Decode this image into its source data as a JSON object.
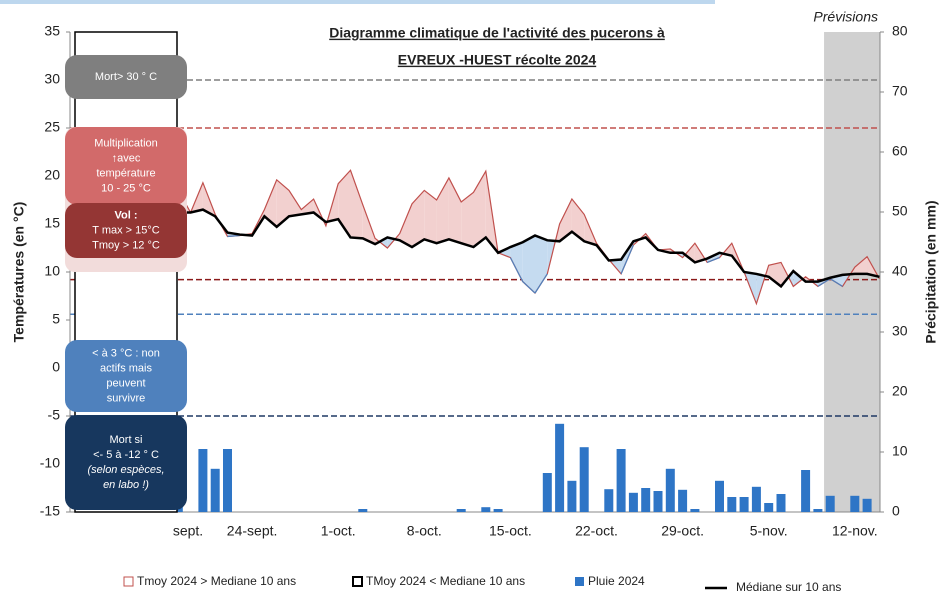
{
  "chart_data": {
    "type": "line",
    "title": [
      "Diagramme climatique de l'activité des pucerons à",
      "EVREUX -HUEST récolte 2024"
    ],
    "forecast_label": "Prévisions",
    "forecast_start_index": 54,
    "ylabel": "Températures (en °C)",
    "y2label": "Précipitation (en mm)",
    "ylim": [
      -15,
      35
    ],
    "yticks": [
      -15,
      -10,
      -5,
      0,
      5,
      10,
      15,
      20,
      25,
      30,
      35
    ],
    "y2lim": [
      0,
      80
    ],
    "y2ticks": [
      0,
      10,
      20,
      30,
      40,
      50,
      60,
      70,
      80
    ],
    "categories": [
      "sept.",
      null,
      null,
      null,
      null,
      null,
      null,
      "24-sept.",
      null,
      null,
      null,
      null,
      null,
      null,
      "1-oct.",
      null,
      null,
      null,
      null,
      null,
      null,
      "8-oct.",
      null,
      null,
      null,
      null,
      null,
      null,
      "15-oct.",
      null,
      null,
      null,
      null,
      null,
      null,
      "22-oct.",
      null,
      null,
      null,
      null,
      null,
      null,
      "29-oct.",
      null,
      null,
      null,
      null,
      null,
      null,
      "5-nov.",
      null,
      null,
      null,
      null,
      null,
      null,
      "12-nov.",
      null,
      null
    ],
    "tmoy": {
      "above_label": "Tmoy 2024 > Mediane 10 ans",
      "below_label": "TMoy 2024 < Mediane 10 ans",
      "color": "#c0504d",
      "below_color": "#4f81bd",
      "above_fill": "#f2d0cf",
      "below_fill": "#c5dbf0",
      "values": [
        null,
        18.5,
        16.2,
        19.3,
        16,
        13.7,
        13.8,
        14,
        16.5,
        19.6,
        18.5,
        16.5,
        17.6,
        14.8,
        19.2,
        20.6,
        17,
        13.5,
        12.5,
        14,
        17.1,
        18.5,
        17.5,
        19.8,
        17.3,
        18.3,
        20.5,
        12,
        11.5,
        9,
        7.8,
        9.8,
        15,
        17.6,
        16,
        13,
        11.3,
        9.8,
        12.8,
        14,
        12.3,
        12.4,
        11.5,
        13,
        11,
        11.5,
        13,
        10,
        6.7,
        10.7,
        11,
        8.5,
        9.5,
        8.5,
        9.3,
        8.5,
        10.5,
        11.6,
        9.3
      ]
    },
    "series": [
      {
        "name": "Médiane sur 10 ans",
        "color": "#000000",
        "values": [
          null,
          16.2,
          16.2,
          16.5,
          15.8,
          14.1,
          13.9,
          13.8,
          15.8,
          14.7,
          15.8,
          16,
          16.2,
          15.2,
          15.5,
          13.6,
          13.5,
          12.9,
          13.6,
          13.3,
          12.6,
          13.4,
          13,
          13.4,
          13,
          12.6,
          13.6,
          12,
          12.6,
          13.1,
          13.8,
          13.3,
          13.2,
          14.2,
          13.2,
          12.8,
          11.2,
          11.3,
          13.2,
          13.6,
          12.3,
          12,
          12,
          11,
          11.4,
          12,
          11.7,
          10,
          9.8,
          9.5,
          8.5,
          10.1,
          9,
          9,
          9.4,
          9.7,
          9.8,
          9.8,
          9.5
        ]
      },
      {
        "name": "Pluie 2024",
        "color": "#2e75c6",
        "axis": "y2",
        "values": [
          null,
          3.7,
          0,
          10.5,
          7.2,
          10.5,
          0,
          0,
          0,
          0,
          0,
          0,
          0,
          0,
          0,
          0,
          0.5,
          0,
          0,
          0,
          0,
          0,
          0,
          0,
          0.5,
          0,
          0.8,
          0.5,
          0,
          0,
          0,
          6.5,
          14.7,
          5.2,
          10.8,
          0,
          3.8,
          10.5,
          3.2,
          4,
          3.5,
          7.2,
          3.7,
          0.5,
          0,
          5.2,
          2.5,
          2.5,
          4.2,
          1.5,
          3,
          0,
          7,
          0.5,
          2.7,
          0,
          2.7,
          2.2,
          0
        ]
      }
    ],
    "reference_lines": [
      {
        "value": 30,
        "color": "#7f7f7f"
      },
      {
        "value": 25,
        "color": "#c0504d"
      },
      {
        "value": 9.2,
        "color": "#8b1a1a"
      },
      {
        "value": 5.6,
        "color": "#4f81bd"
      },
      {
        "value": -5,
        "color": "#1f3864"
      }
    ],
    "annotations": [
      {
        "lines": [
          "Mort> 30 ° C"
        ],
        "color": "#7f7f7f"
      },
      {
        "lines": [
          "Multiplication",
          "↑avec",
          "température",
          "10 - 25 °C"
        ],
        "color": "#d26a6a"
      },
      {
        "lines": [
          "Vol :",
          "T max > 15°C",
          "Tmoy > 12 °C"
        ],
        "color": "#943634"
      },
      {
        "lines": [
          "< à 3 °C : non",
          "actifs mais",
          "peuvent",
          "survivre"
        ],
        "color": "#4f81bd"
      },
      {
        "lines": [
          "Mort  si",
          "<- 5 à -12 ° C",
          "(selon espèces,",
          "en labo !)"
        ],
        "color": "#17375e"
      }
    ]
  }
}
